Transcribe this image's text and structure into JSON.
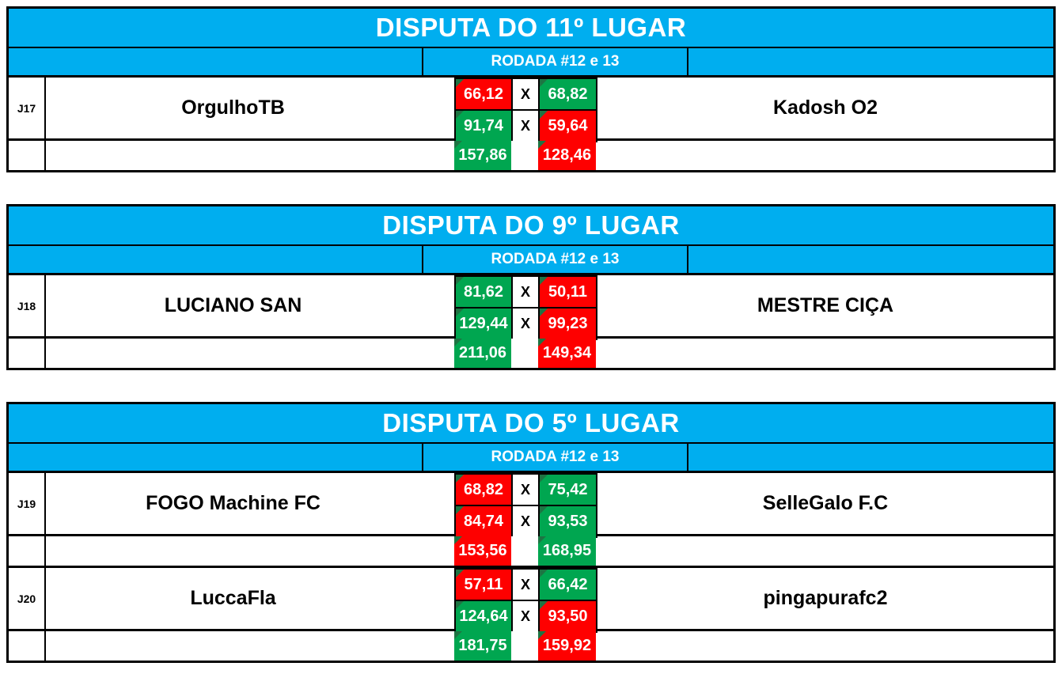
{
  "colors": {
    "header_blue": "#00AEEF",
    "win_green": "#00A650",
    "loss_red": "#FE0000",
    "corner_marker_green": "#1E7443",
    "border_black": "#000000"
  },
  "tables": [
    {
      "title": "DISPUTA DO 11º LUGAR",
      "round_label": "RODADA #12 e 13",
      "matches": [
        {
          "id": "J17",
          "home_team": "OrgulhoTB",
          "away_team": "Kadosh O2",
          "games": [
            {
              "home": "66,12",
              "home_result": "loss",
              "x": "X",
              "away": "68,82",
              "away_result": "win"
            },
            {
              "home": "91,74",
              "home_result": "win",
              "x": "X",
              "away": "59,64",
              "away_result": "loss"
            }
          ],
          "total": {
            "home": "157,86",
            "home_result": "win",
            "away": "128,46",
            "away_result": "loss"
          }
        }
      ]
    },
    {
      "title": "DISPUTA DO 9º LUGAR",
      "round_label": "RODADA #12 e 13",
      "matches": [
        {
          "id": "J18",
          "home_team": "LUCIANO SAN",
          "away_team": "MESTRE CIÇA",
          "games": [
            {
              "home": "81,62",
              "home_result": "win",
              "x": "X",
              "away": "50,11",
              "away_result": "loss"
            },
            {
              "home": "129,44",
              "home_result": "win",
              "x": "X",
              "away": "99,23",
              "away_result": "loss"
            }
          ],
          "total": {
            "home": "211,06",
            "home_result": "win",
            "away": "149,34",
            "away_result": "loss"
          }
        }
      ]
    },
    {
      "title": "DISPUTA DO 5º LUGAR",
      "round_label": "RODADA #12 e 13",
      "matches": [
        {
          "id": "J19",
          "home_team": "FOGO Machine FC",
          "away_team": "SelleGalo F.C",
          "games": [
            {
              "home": "68,82",
              "home_result": "loss",
              "x": "X",
              "away": "75,42",
              "away_result": "win"
            },
            {
              "home": "84,74",
              "home_result": "loss",
              "x": "X",
              "away": "93,53",
              "away_result": "win"
            }
          ],
          "total": {
            "home": "153,56",
            "home_result": "loss",
            "away": "168,95",
            "away_result": "win"
          }
        },
        {
          "id": "J20",
          "home_team": "LuccaFla",
          "away_team": "pingapurafc2",
          "games": [
            {
              "home": "57,11",
              "home_result": "loss",
              "x": "X",
              "away": "66,42",
              "away_result": "win"
            },
            {
              "home": "124,64",
              "home_result": "win",
              "x": "X",
              "away": "93,50",
              "away_result": "loss"
            }
          ],
          "total": {
            "home": "181,75",
            "home_result": "win",
            "away": "159,92",
            "away_result": "loss"
          }
        }
      ]
    }
  ]
}
